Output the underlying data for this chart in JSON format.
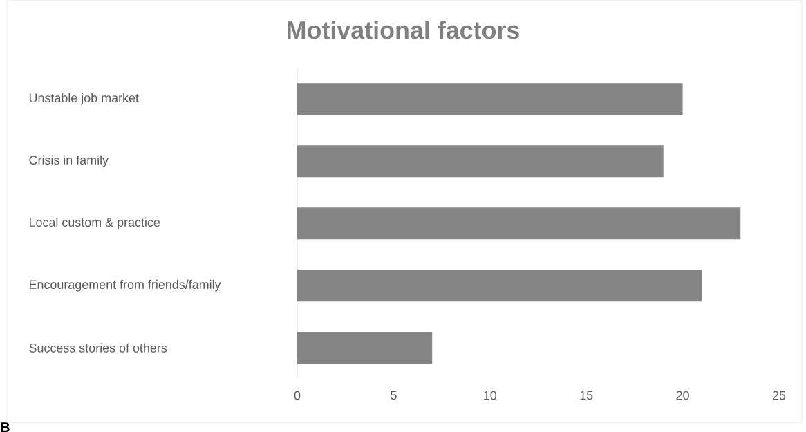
{
  "chart_data": {
    "type": "bar",
    "orientation": "horizontal",
    "title": "Motivational factors",
    "categories": [
      "Unstable job market",
      "Crisis in family",
      "Local custom & practice",
      "Encouragement from friends/family",
      "Success stories of others"
    ],
    "values": [
      20,
      19,
      23,
      21,
      7
    ],
    "color": "#858585",
    "xlim": [
      0,
      25
    ],
    "xticks": [
      0,
      5,
      10,
      15,
      20,
      25
    ],
    "annotations": [
      "B"
    ]
  }
}
